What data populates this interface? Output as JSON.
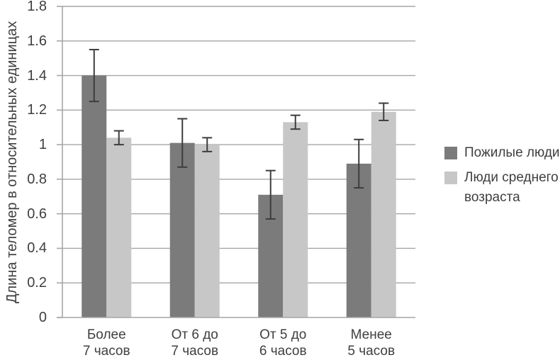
{
  "chart_data": {
    "type": "bar",
    "title": "",
    "ylabel": "Длина теломер в относительных единицах",
    "xlabel": "",
    "ylim": [
      0,
      1.8
    ],
    "ytick_step": 0.2,
    "yticks": [
      "0",
      "0.2",
      "0.4",
      "0.6",
      "0.8",
      "1",
      "1.2",
      "1.4",
      "1.6",
      "1.8"
    ],
    "grid": true,
    "legend_position": "right",
    "categories": [
      "Более\n7 часов",
      "От 6 до\n7 часов",
      "От 5 до\n6 часов",
      "Менее\n5 часов"
    ],
    "series": [
      {
        "name": "Пожилые люди",
        "color": "#7b7b7b",
        "values": [
          1.4,
          1.01,
          0.71,
          0.89
        ],
        "errors": [
          0.15,
          0.14,
          0.14,
          0.14
        ]
      },
      {
        "name": "Люди среднего возраста",
        "color": "#c7c7c7",
        "values": [
          1.04,
          1.0,
          1.13,
          1.19
        ],
        "errors": [
          0.04,
          0.04,
          0.04,
          0.05
        ]
      }
    ],
    "colors": {
      "grid": "#a6a6a6",
      "axis": "#a6a6a6",
      "error_bar": "#3d3d3d",
      "text": "#3f3f3f",
      "background": "#ffffff"
    }
  }
}
